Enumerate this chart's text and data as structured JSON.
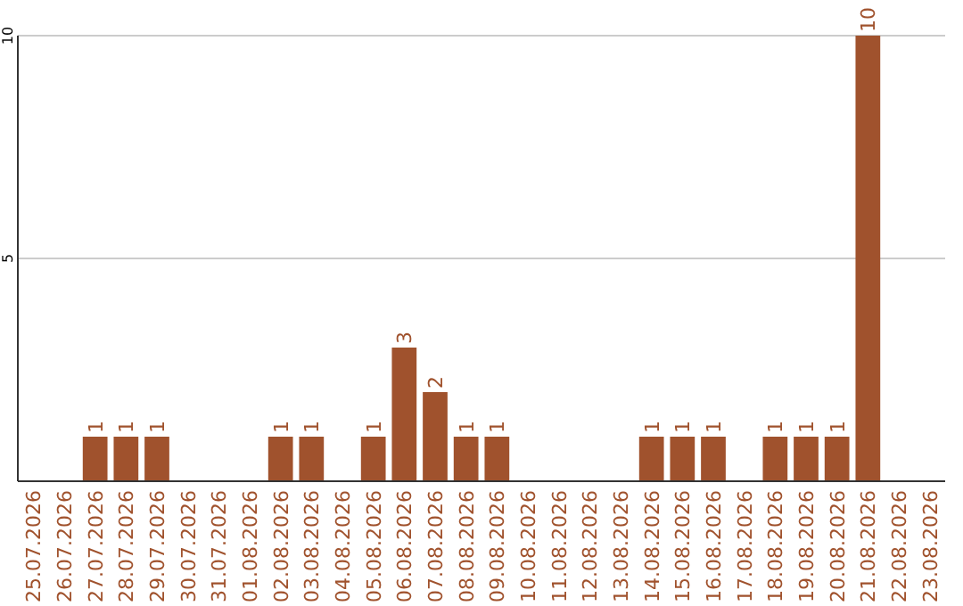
{
  "chart_data": {
    "type": "bar",
    "categories": [
      "25.07.2026",
      "26.07.2026",
      "27.07.2026",
      "28.07.2026",
      "29.07.2026",
      "30.07.2026",
      "31.07.2026",
      "01.08.2026",
      "02.08.2026",
      "03.08.2026",
      "04.08.2026",
      "05.08.2026",
      "06.08.2026",
      "07.08.2026",
      "08.08.2026",
      "09.08.2026",
      "10.08.2026",
      "11.08.2026",
      "12.08.2026",
      "13.08.2026",
      "14.08.2026",
      "15.08.2026",
      "16.08.2026",
      "17.08.2026",
      "18.08.2026",
      "19.08.2026",
      "20.08.2026",
      "21.08.2026",
      "22.08.2026",
      "23.08.2026"
    ],
    "values": [
      0,
      0,
      1,
      1,
      1,
      0,
      0,
      0,
      1,
      1,
      0,
      1,
      3,
      2,
      1,
      1,
      0,
      0,
      0,
      0,
      1,
      1,
      1,
      0,
      1,
      1,
      1,
      10,
      0,
      0
    ],
    "value_labels": [
      null,
      null,
      "1",
      "1",
      "1",
      null,
      null,
      null,
      "1",
      "1",
      null,
      "1",
      "3",
      "2",
      "1",
      "1",
      null,
      null,
      null,
      null,
      "1",
      "1",
      "1",
      null,
      "1",
      "1",
      "1",
      "10",
      null,
      null
    ],
    "color": "#a0522d",
    "ylim": [
      0,
      10
    ],
    "yticks": [
      5,
      10
    ],
    "grid": "y"
  }
}
